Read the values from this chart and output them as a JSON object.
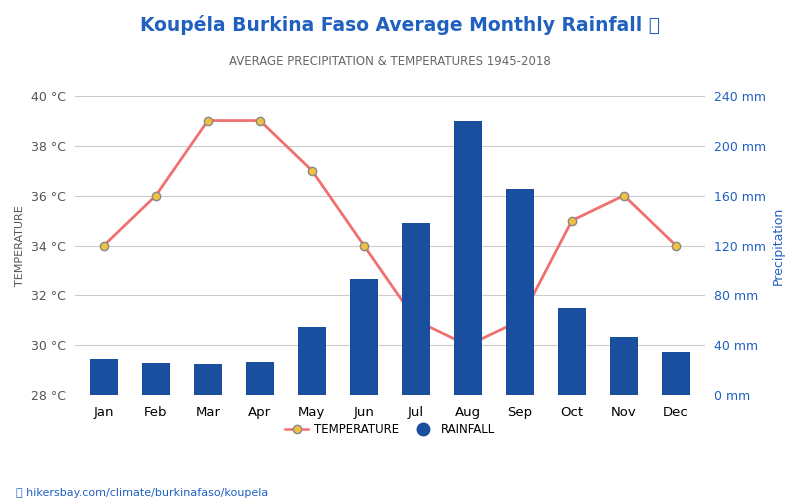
{
  "title": "Koupéla Burkina Faso Average Monthly Rainfall 🌂",
  "subtitle": "AVERAGE PRECIPITATION & TEMPERATURES 1945-2018",
  "months": [
    "Jan",
    "Feb",
    "Mar",
    "Apr",
    "May",
    "Jun",
    "Jul",
    "Aug",
    "Sep",
    "Oct",
    "Nov",
    "Dec"
  ],
  "temperature": [
    34,
    36,
    39,
    39,
    37,
    34,
    31,
    30,
    31,
    35,
    36,
    34
  ],
  "rainfall_mm": [
    29,
    26,
    25,
    27,
    55,
    93,
    138,
    220,
    165,
    70,
    47,
    35
  ],
  "temp_color": "#f07070",
  "bar_color": "#1a4fa0",
  "marker_face": "#f0c040",
  "marker_edge": "#888888",
  "title_color": "#2060c0",
  "subtitle_color": "#666666",
  "left_ylabel": "TEMPERATURE",
  "right_ylabel": "Precipitation",
  "temp_ylim": [
    28,
    40
  ],
  "temp_yticks": [
    28,
    30,
    32,
    34,
    36,
    38,
    40
  ],
  "rain_ylim": [
    0,
    240
  ],
  "rain_yticks": [
    0,
    40,
    80,
    120,
    160,
    200,
    240
  ],
  "rain_ytick_labels": [
    "0 mm",
    "40 mm",
    "80 mm",
    "120 mm",
    "160 mm",
    "200 mm",
    "240 mm"
  ],
  "temp_ytick_labels": [
    "28 °C",
    "30 °C",
    "32 °C",
    "34 °C",
    "36 °C",
    "38 °C",
    "40 °C"
  ],
  "watermark": "hikersbay.com/climate/burkinafaso/koupela",
  "legend_temp_label": "TEMPERATURE",
  "legend_rain_label": "RAINFALL",
  "axis_color": "#2060c0",
  "grid_color": "#cccccc",
  "left_tick_color": "#555555",
  "bg_color": "#ffffff"
}
